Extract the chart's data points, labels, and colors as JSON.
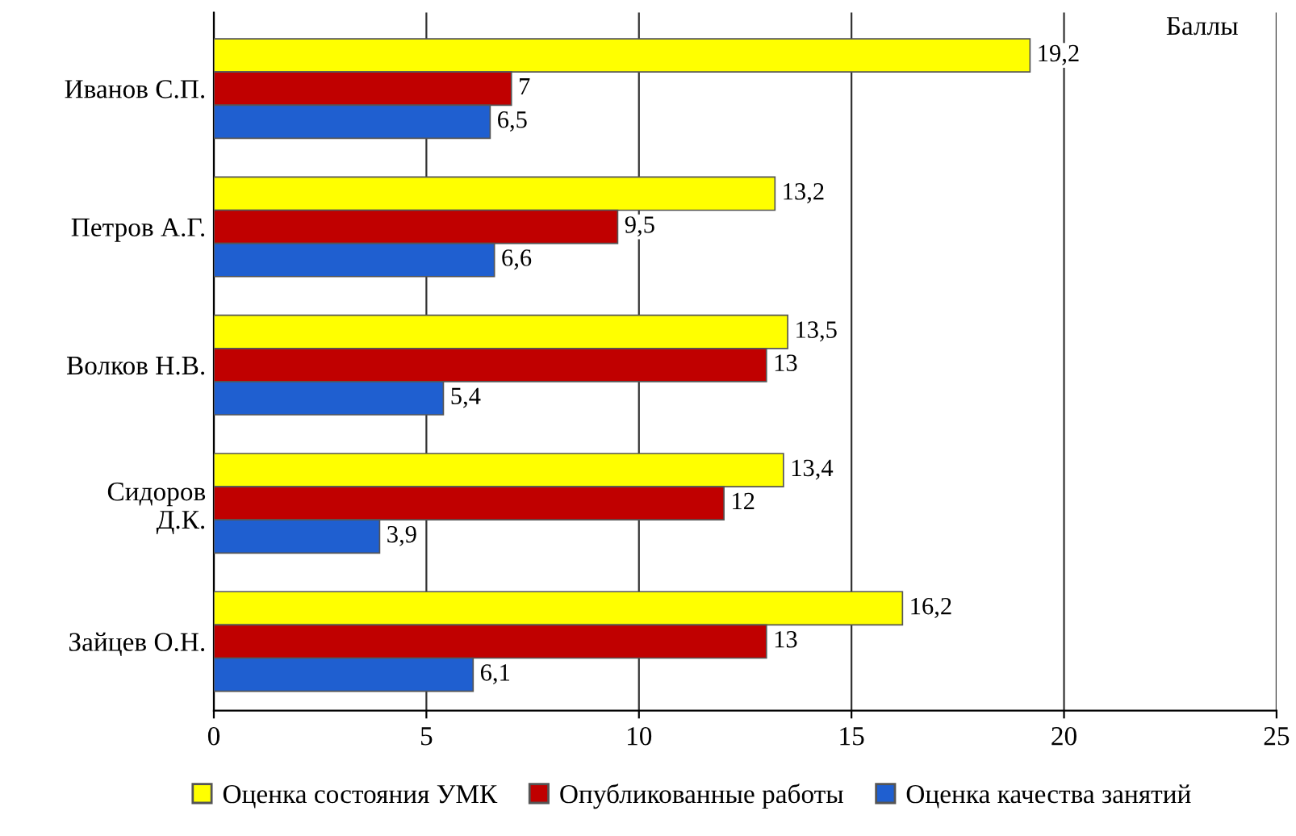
{
  "chart_data": {
    "type": "bar",
    "orientation": "horizontal",
    "categories": [
      "Иванов С.П.",
      "Петров А.Г.",
      "Волков Н.В.",
      "Сидоров\nД.К.",
      "Зайцев О.Н."
    ],
    "series": [
      {
        "name": "Оценка состояния УМК",
        "color": "#ffff00",
        "values": [
          19.2,
          13.2,
          13.5,
          13.4,
          16.2
        ],
        "value_labels": [
          "19,2",
          "13,2",
          "13,5",
          "13,4",
          "16,2"
        ]
      },
      {
        "name": "Опубликованные работы",
        "color": "#c00000",
        "values": [
          7,
          9.5,
          13,
          12,
          13
        ],
        "value_labels": [
          "7",
          "9,5",
          "13",
          "12",
          "13"
        ]
      },
      {
        "name": "Оценка качества занятий",
        "color": "#1f5fd0",
        "values": [
          6.5,
          6.6,
          5.4,
          3.9,
          6.1
        ],
        "value_labels": [
          "6,5",
          "6,6",
          "5,4",
          "3,9",
          "6,1"
        ]
      }
    ],
    "xlim": [
      0,
      25
    ],
    "xticks": [
      0,
      5,
      10,
      15,
      20,
      25
    ],
    "grid": "x",
    "legend": "bottom",
    "annotations": [
      "Баллы"
    ]
  }
}
